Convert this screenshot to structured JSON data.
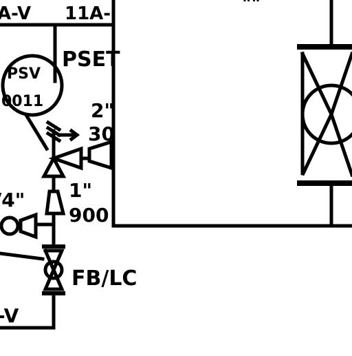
{
  "labels": {
    "line_top_left": "A-V",
    "line_top_mid": "11A-",
    "equipment_tag": "PSET",
    "psv_tag": "PSV",
    "psv_number": "0011",
    "outlet_size": "2\"",
    "outlet_rating": "30",
    "inlet_size": "1\"",
    "inlet_rating": "900",
    "branch_size": "/4\"",
    "valve_note": "FB/LC",
    "line_bottom_left": "-V",
    "top_marks": "\"\""
  },
  "colors": {
    "line": "#000000",
    "background": "#ffffff"
  }
}
